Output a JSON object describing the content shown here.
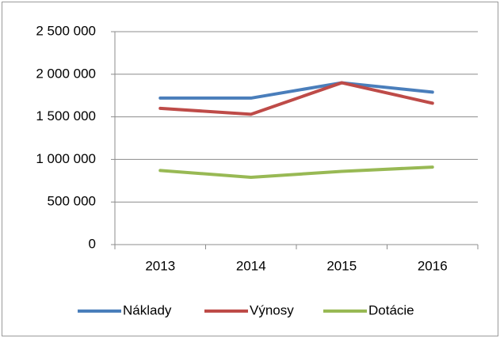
{
  "chart_data": {
    "type": "line",
    "categories": [
      "2013",
      "2014",
      "2015",
      "2016"
    ],
    "series": [
      {
        "name": "Náklady",
        "color": "#4a7ebb",
        "values": [
          1720000,
          1720000,
          1900000,
          1790000
        ]
      },
      {
        "name": "Výnosy",
        "color": "#be4b48",
        "values": [
          1600000,
          1530000,
          1900000,
          1660000
        ]
      },
      {
        "name": "Dotácie",
        "color": "#98b954",
        "values": [
          870000,
          790000,
          860000,
          910000
        ]
      }
    ],
    "ylim": [
      0,
      2500000
    ],
    "yticks": [
      0,
      {
        "value": 500000,
        "label": "500 000"
      },
      {
        "value": 1000000,
        "label": "1 000 000"
      },
      {
        "value": 1500000,
        "label": "1 500 000"
      },
      {
        "value": 2000000,
        "label": "2 000 000"
      },
      {
        "value": 2500000,
        "label": "2 500 000"
      }
    ],
    "grid": true,
    "legend": "bottom"
  }
}
